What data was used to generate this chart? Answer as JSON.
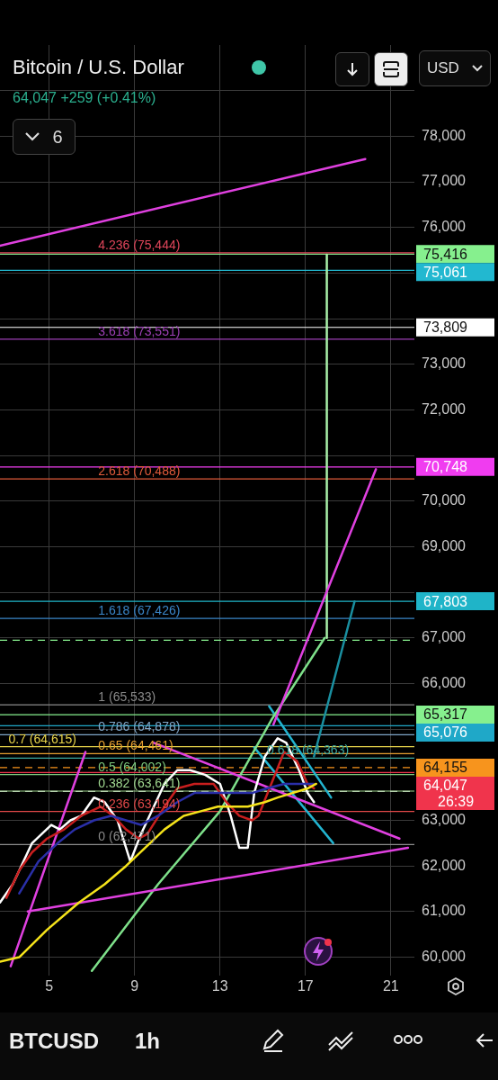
{
  "chart_data": {
    "type": "line",
    "title": "Bitcoin / U.S. Dollar",
    "subtitle": "64,047 +259 (+0.41%)",
    "xlim": [
      2.7,
      22.1
    ],
    "xticks": [
      5,
      9,
      13,
      17,
      21
    ],
    "ylim": [
      59600,
      80000
    ],
    "yticks": [
      {
        "value": 60000,
        "label": "60,000"
      },
      {
        "value": 61000,
        "label": "61,000"
      },
      {
        "value": 62000,
        "label": "62,000"
      },
      {
        "value": 63000,
        "label": "63,000"
      },
      {
        "value": 64000,
        "label": null
      },
      {
        "value": 65000,
        "label": null
      },
      {
        "value": 66000,
        "label": "66,000"
      },
      {
        "value": 67000,
        "label": "67,000"
      },
      {
        "value": 68000,
        "label": null
      },
      {
        "value": 69000,
        "label": "69,000"
      },
      {
        "value": 70000,
        "label": "70,000"
      },
      {
        "value": 71000,
        "label": null
      },
      {
        "value": 72000,
        "label": "72,000"
      },
      {
        "value": 73000,
        "label": "73,000"
      },
      {
        "value": 74000,
        "label": null
      },
      {
        "value": 75000,
        "label": null
      },
      {
        "value": 76000,
        "label": "76,000"
      },
      {
        "value": 77000,
        "label": "77,000"
      },
      {
        "value": 78000,
        "label": "78,000"
      },
      {
        "value": 79000,
        "label": null
      }
    ],
    "grid": true,
    "legend": false,
    "marker": "none",
    "series": [
      {
        "color": "#f5e31a",
        "x": [
          2.7,
          3.6,
          4.9,
          6.4,
          7.6,
          8.6,
          9.5,
          10.4,
          11.3,
          12.1,
          12.9,
          13.6,
          14.3,
          15.1,
          15.7,
          16.4,
          17.1,
          17.5
        ],
        "values": [
          59900,
          60000,
          60600,
          61200,
          61600,
          62000,
          62400,
          62800,
          63100,
          63200,
          63300,
          63300,
          63300,
          63400,
          63500,
          63600,
          63700,
          63800
        ]
      },
      {
        "color": "#2a2fa8",
        "x": [
          3.6,
          4.5,
          5.4,
          6.2,
          7.1,
          7.9,
          8.6,
          9.3,
          10.1,
          11.0,
          11.8,
          13.0,
          13.9,
          14.5,
          15.2,
          16.0,
          16.7,
          17.4
        ],
        "values": [
          61400,
          62100,
          62500,
          62800,
          63000,
          63100,
          63000,
          62900,
          63100,
          63400,
          63600,
          63600,
          63600,
          63600,
          63700,
          63800,
          63800,
          63800
        ]
      },
      {
        "color": "#c81e1e",
        "x": [
          3.0,
          3.6,
          4.2,
          4.9,
          5.7,
          6.5,
          7.4,
          8.0,
          8.6,
          9.2,
          9.6,
          10.4,
          11.0,
          11.8,
          12.7,
          13.3,
          13.9,
          14.5,
          14.8,
          15.4,
          16.0,
          16.6,
          17.1,
          17.4
        ],
        "values": [
          61300,
          61900,
          62300,
          62600,
          62800,
          63100,
          63300,
          63100,
          62800,
          62600,
          62700,
          63300,
          63700,
          63800,
          63800,
          63400,
          63100,
          63000,
          63100,
          63800,
          64500,
          64300,
          63800,
          63700
        ]
      },
      {
        "color": "#ffffff",
        "x": [
          2.7,
          3.3,
          4.2,
          5.1,
          5.5,
          6.0,
          6.5,
          7.1,
          7.6,
          8.2,
          8.8,
          9.3,
          9.9,
          10.4,
          11.0,
          11.6,
          12.3,
          13.0,
          13.5,
          13.9,
          14.3,
          14.6,
          15.1,
          15.7,
          16.1,
          16.7,
          17.1,
          17.4
        ],
        "values": [
          61200,
          61600,
          62500,
          62900,
          62800,
          63000,
          63100,
          63500,
          63400,
          63000,
          62100,
          62700,
          63300,
          63800,
          64100,
          64100,
          64000,
          63800,
          63100,
          62400,
          62400,
          63600,
          64400,
          64800,
          64700,
          64100,
          63600,
          63400
        ]
      },
      {
        "color": "#e040e0",
        "x": [
          2.7,
          19.8
        ],
        "values": [
          75600,
          77500
        ]
      },
      {
        "color": "#e040e0",
        "x": [
          15.5,
          20.3
        ],
        "values": [
          65100,
          70700
        ]
      },
      {
        "color": "#e040e0",
        "x": [
          9.9,
          21.4
        ],
        "values": [
          64700,
          62600
        ]
      },
      {
        "color": "#e040e0",
        "x": [
          4.0,
          21.8
        ],
        "values": [
          61000,
          62400
        ]
      },
      {
        "color": "#e040e0",
        "x": [
          3.2,
          6.7
        ],
        "values": [
          59800,
          64500
        ]
      },
      {
        "color": "#7ee08a",
        "x": [
          7.0,
          10.1,
          13.0,
          15.4,
          17.9
        ],
        "values": [
          59700,
          61600,
          63200,
          65200,
          67000
        ]
      },
      {
        "color": "#a8f0a8",
        "x": [
          18.0,
          18.0
        ],
        "values": [
          67000,
          75400
        ]
      },
      {
        "color": "#22b4d0",
        "x": [
          15.3,
          18.2
        ],
        "values": [
          65500,
          63500
        ]
      },
      {
        "color": "#22b4d0",
        "x": [
          14.6,
          18.3
        ],
        "values": [
          64600,
          62500
        ]
      },
      {
        "color": "#1a8fa0",
        "x": [
          17.4,
          19.3
        ],
        "values": [
          64400,
          67800
        ]
      }
    ],
    "ref_lines": [
      {
        "axis": "y",
        "value": 75416,
        "label": "75,416",
        "color": "#86f08e"
      },
      {
        "axis": "y",
        "value": 75061,
        "label": "75,061",
        "color": "#22b8d0"
      },
      {
        "axis": "y",
        "value": 73809,
        "label": "73,809",
        "color": "#ffffff"
      },
      {
        "axis": "y",
        "value": 70748,
        "label": "70,748",
        "color": "#f03cf0"
      },
      {
        "axis": "y",
        "value": 67803,
        "label": "67,803",
        "color": "#1fb4c8"
      },
      {
        "axis": "y",
        "value": 66950,
        "color": "#86f08e",
        "line_style": "dashed"
      },
      {
        "axis": "y",
        "value": 65317,
        "label": "65,317",
        "color": "#86f08e"
      },
      {
        "axis": "y",
        "value": 65076,
        "label": "65,076",
        "color": "#1fa8c8"
      },
      {
        "axis": "y",
        "value": 64155,
        "label": "64,155",
        "color": "#f7941d",
        "line_style": "dashed"
      },
      {
        "axis": "y",
        "value": 64047,
        "label": "64,047",
        "color": "#f0344c"
      },
      {
        "axis": "y",
        "value": 63634,
        "color": "#cccccc",
        "line_style": "dashed"
      },
      {
        "axis": "y",
        "value": 75444,
        "color": "#e0455a"
      },
      {
        "axis": "y",
        "value": 73551,
        "color": "#9c3fb5"
      },
      {
        "axis": "y",
        "value": 70488,
        "color": "#e05a3a"
      },
      {
        "axis": "y",
        "value": 67426,
        "color": "#3a86c8"
      },
      {
        "axis": "y",
        "value": 65533,
        "color": "#8a8a8a"
      },
      {
        "axis": "y",
        "value": 64878,
        "color": "#7fa6c8"
      },
      {
        "axis": "y",
        "value": 64615,
        "color": "#e8d44a"
      },
      {
        "axis": "y",
        "value": 64461,
        "color": "#e8a030"
      },
      {
        "axis": "y",
        "value": 64363,
        "color": "#3aa8a0"
      },
      {
        "axis": "y",
        "value": 64002,
        "color": "#7cc87c"
      },
      {
        "axis": "y",
        "value": 63641,
        "color": "#a0d890"
      },
      {
        "axis": "y",
        "value": 63194,
        "color": "#e04848"
      },
      {
        "axis": "y",
        "value": 62471,
        "color": "#8a8a8a"
      }
    ],
    "annotations": [
      {
        "text": "4.236 (75,444)",
        "x": 7.3,
        "y": 75444
      },
      {
        "text": "3.618 (73,551)",
        "x": 7.3,
        "y": 73551
      },
      {
        "text": "2.618 (70,488)",
        "x": 7.3,
        "y": 70488
      },
      {
        "text": "1.618 (67,426)",
        "x": 7.3,
        "y": 67426
      },
      {
        "text": "1 (65,533)",
        "x": 7.3,
        "y": 65533
      },
      {
        "text": "0.786 (64,878)",
        "x": 7.3,
        "y": 64878
      },
      {
        "text": "0.7 (64,615)",
        "x": 3.1,
        "y": 64615
      },
      {
        "text": "0.65 (64,461)",
        "x": 7.3,
        "y": 64461
      },
      {
        "text": "0.618 (64,363)",
        "x": 15.2,
        "y": 64363
      },
      {
        "text": "0.5 (64,002)",
        "x": 7.3,
        "y": 64002
      },
      {
        "text": "0.382 (63,641)",
        "x": 7.3,
        "y": 63641
      },
      {
        "text": "0.236 (63,194)",
        "x": 7.3,
        "y": 63194
      },
      {
        "text": "0 (62,471)",
        "x": 7.3,
        "y": 62471
      },
      "26:39",
      "6",
      "USD",
      "BTCUSD",
      "1h"
    ]
  }
}
